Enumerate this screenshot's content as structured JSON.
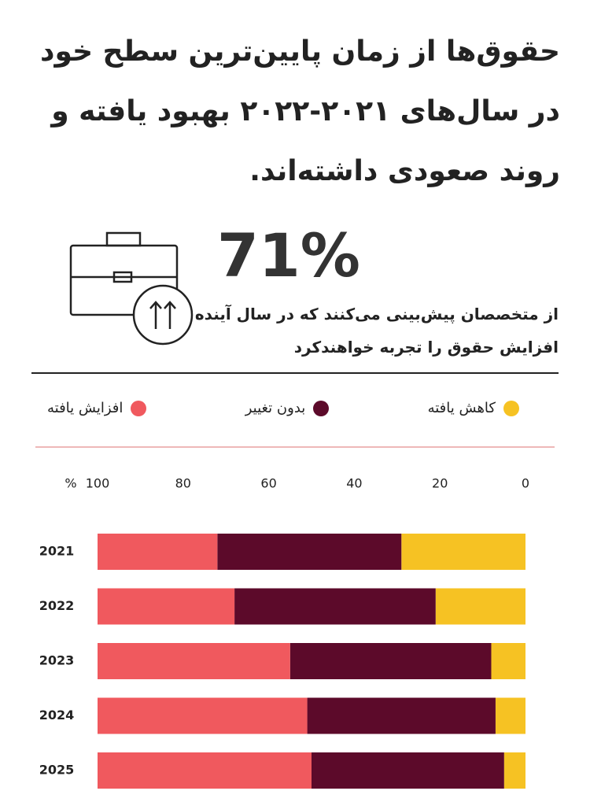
{
  "header": {
    "title": "حقوق‌ها از زمان پایین‌ترین سطح خود در سال‌های ۲۰۲۱-۲۰۲۲ بهبود یافته و روند صعودی داشته‌اند."
  },
  "stat": {
    "value": "71%",
    "description": "از متخصصان پیش‌بینی می‌کنند که در سال آینده افزایش حقوق را تجربه خواهندکرد"
  },
  "chart_data": {
    "type": "stacked-bar-horizontal",
    "direction": "rtl",
    "categories": [
      "2021",
      "2022",
      "2023",
      "2024",
      "2025"
    ],
    "series": [
      {
        "name": "کاهش یافته",
        "color": "#f6c223",
        "values": [
          29,
          21,
          8,
          7,
          5
        ]
      },
      {
        "name": "بدون تغییر",
        "color": "#5c0a2a",
        "values": [
          43,
          47,
          47,
          44,
          45
        ]
      },
      {
        "name": "افزایش یافته",
        "color": "#f0595e",
        "values": [
          28,
          32,
          45,
          49,
          50
        ]
      }
    ],
    "xlim": [
      0,
      100
    ],
    "xticks": [
      0,
      20,
      40,
      60,
      80,
      100
    ],
    "x_unit": "%"
  }
}
